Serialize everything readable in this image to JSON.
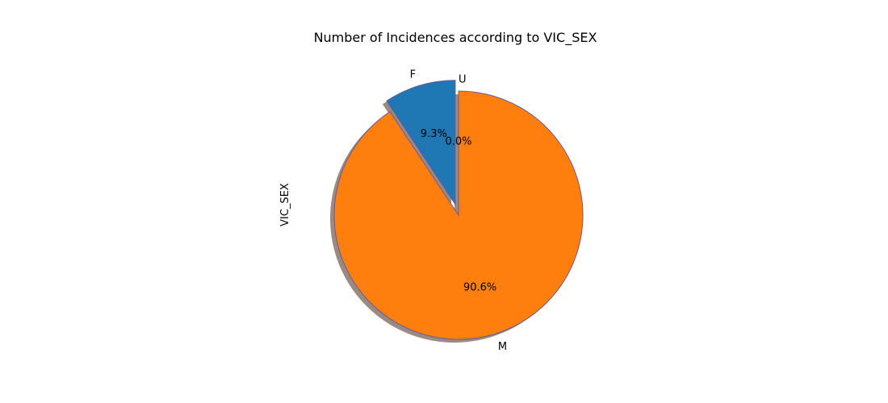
{
  "chart_data": {
    "type": "pie",
    "title": "Number of Incidences according to VIC_SEX",
    "ylabel": "VIC_SEX",
    "xlabel": "",
    "labels": [
      "F",
      "M",
      "U"
    ],
    "values": [
      9.3,
      90.6,
      0.0
    ],
    "percent_labels": [
      "9.3%",
      "90.6%",
      "0.0%"
    ],
    "colors": [
      "#1f77b4",
      "#ff7f0e",
      "#2ca02c"
    ],
    "edge_color": "#6a5a9a",
    "shadow_color": "#9a8a80",
    "exploded": [
      "F"
    ],
    "start_angle_deg": 90,
    "shadow": true
  }
}
